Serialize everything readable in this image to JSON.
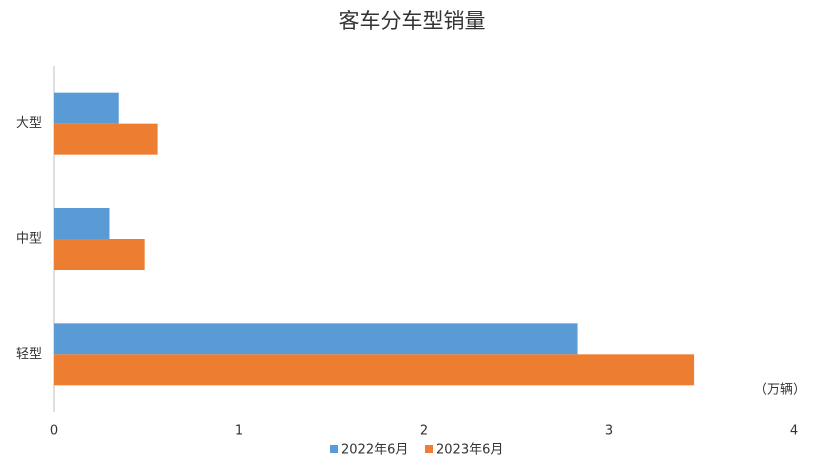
{
  "chart_data": {
    "type": "hbar",
    "title": "客车分车型销量",
    "annotation": "（万辆）",
    "categories": [
      "大型",
      "中型",
      "轻型"
    ],
    "series": [
      {
        "name": "2022年6月",
        "color": "#5b9bd5",
        "values": [
          0.35,
          0.3,
          2.83
        ]
      },
      {
        "name": "2023年6月",
        "color": "#ed7d31",
        "values": [
          0.56,
          0.49,
          3.46
        ]
      }
    ],
    "xlim": [
      0,
      4
    ],
    "xticks": [
      0,
      1,
      2,
      3,
      4
    ],
    "grid": false,
    "legend": "bottom"
  }
}
